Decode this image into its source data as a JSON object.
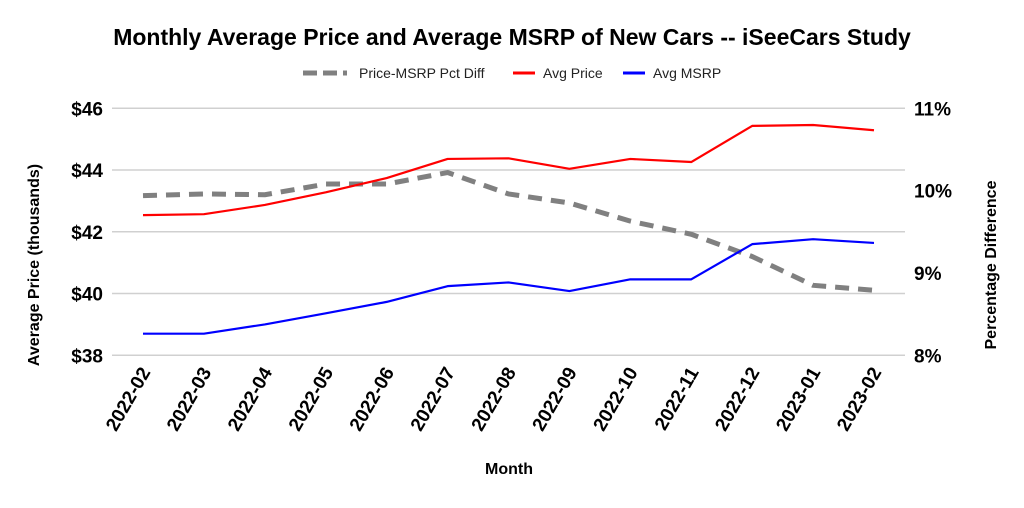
{
  "chart_data": {
    "type": "line",
    "title": "Monthly Average Price and Average MSRP of New Cars -- iSeeCars Study",
    "xlabel": "Month",
    "ylabel": "Average Price (thousands)",
    "y2label": "Percentage Difference",
    "categories": [
      "2022-02",
      "2022-03",
      "2022-04",
      "2022-05",
      "2022-06",
      "2022-07",
      "2022-08",
      "2022-09",
      "2022-10",
      "2022-11",
      "2022-12",
      "2023-01",
      "2023-02"
    ],
    "ylim": [
      38,
      46
    ],
    "yticks": [
      "$38",
      "$40",
      "$42",
      "$44",
      "$46"
    ],
    "y2lim": [
      8,
      11
    ],
    "y2ticks": [
      "8%",
      "9%",
      "10%",
      "11%"
    ],
    "grid": true,
    "legend_placement": "top",
    "series": [
      {
        "name": "Price-MSRP Pct Diff",
        "axis": "right",
        "color": "#808080",
        "style": "dashed",
        "values": [
          9.94,
          9.96,
          9.95,
          10.08,
          10.08,
          10.22,
          9.96,
          9.85,
          9.63,
          9.47,
          9.2,
          8.85,
          8.79
        ]
      },
      {
        "name": "Avg Price",
        "axis": "left",
        "color": "#ff0000",
        "style": "solid",
        "values": [
          42.54,
          42.57,
          42.87,
          43.28,
          43.74,
          44.36,
          44.38,
          44.04,
          44.36,
          44.26,
          45.43,
          45.46,
          45.29
        ]
      },
      {
        "name": "Avg MSRP",
        "axis": "left",
        "color": "#0000ff",
        "style": "solid",
        "values": [
          38.7,
          38.7,
          39.0,
          39.36,
          39.73,
          40.24,
          40.36,
          40.08,
          40.46,
          40.46,
          41.6,
          41.76,
          41.64
        ]
      }
    ]
  }
}
